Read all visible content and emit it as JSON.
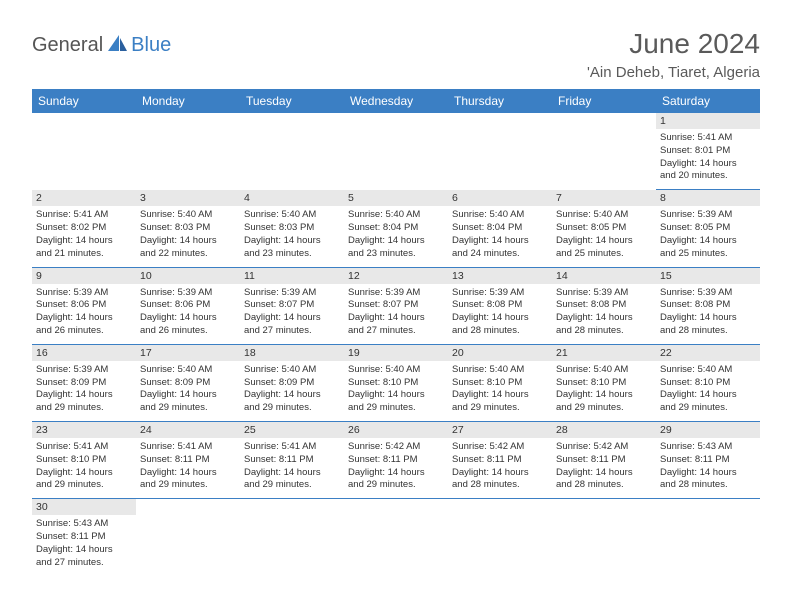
{
  "brand": {
    "part1": "General",
    "part2": "Blue"
  },
  "title": "June 2024",
  "location": "'Ain Deheb, Tiaret, Algeria",
  "colors": {
    "header_bg": "#3b7fc4",
    "header_text": "#ffffff",
    "daynum_bg": "#e8e8e8",
    "row_border": "#3b7fc4",
    "text": "#333333",
    "title_color": "#5a5a5a"
  },
  "day_headers": [
    "Sunday",
    "Monday",
    "Tuesday",
    "Wednesday",
    "Thursday",
    "Friday",
    "Saturday"
  ],
  "weeks": [
    {
      "nums": [
        "",
        "",
        "",
        "",
        "",
        "",
        "1"
      ],
      "cells": [
        null,
        null,
        null,
        null,
        null,
        null,
        {
          "sr": "Sunrise: 5:41 AM",
          "ss": "Sunset: 8:01 PM",
          "dl1": "Daylight: 14 hours",
          "dl2": "and 20 minutes."
        }
      ]
    },
    {
      "nums": [
        "2",
        "3",
        "4",
        "5",
        "6",
        "7",
        "8"
      ],
      "cells": [
        {
          "sr": "Sunrise: 5:41 AM",
          "ss": "Sunset: 8:02 PM",
          "dl1": "Daylight: 14 hours",
          "dl2": "and 21 minutes."
        },
        {
          "sr": "Sunrise: 5:40 AM",
          "ss": "Sunset: 8:03 PM",
          "dl1": "Daylight: 14 hours",
          "dl2": "and 22 minutes."
        },
        {
          "sr": "Sunrise: 5:40 AM",
          "ss": "Sunset: 8:03 PM",
          "dl1": "Daylight: 14 hours",
          "dl2": "and 23 minutes."
        },
        {
          "sr": "Sunrise: 5:40 AM",
          "ss": "Sunset: 8:04 PM",
          "dl1": "Daylight: 14 hours",
          "dl2": "and 23 minutes."
        },
        {
          "sr": "Sunrise: 5:40 AM",
          "ss": "Sunset: 8:04 PM",
          "dl1": "Daylight: 14 hours",
          "dl2": "and 24 minutes."
        },
        {
          "sr": "Sunrise: 5:40 AM",
          "ss": "Sunset: 8:05 PM",
          "dl1": "Daylight: 14 hours",
          "dl2": "and 25 minutes."
        },
        {
          "sr": "Sunrise: 5:39 AM",
          "ss": "Sunset: 8:05 PM",
          "dl1": "Daylight: 14 hours",
          "dl2": "and 25 minutes."
        }
      ]
    },
    {
      "nums": [
        "9",
        "10",
        "11",
        "12",
        "13",
        "14",
        "15"
      ],
      "cells": [
        {
          "sr": "Sunrise: 5:39 AM",
          "ss": "Sunset: 8:06 PM",
          "dl1": "Daylight: 14 hours",
          "dl2": "and 26 minutes."
        },
        {
          "sr": "Sunrise: 5:39 AM",
          "ss": "Sunset: 8:06 PM",
          "dl1": "Daylight: 14 hours",
          "dl2": "and 26 minutes."
        },
        {
          "sr": "Sunrise: 5:39 AM",
          "ss": "Sunset: 8:07 PM",
          "dl1": "Daylight: 14 hours",
          "dl2": "and 27 minutes."
        },
        {
          "sr": "Sunrise: 5:39 AM",
          "ss": "Sunset: 8:07 PM",
          "dl1": "Daylight: 14 hours",
          "dl2": "and 27 minutes."
        },
        {
          "sr": "Sunrise: 5:39 AM",
          "ss": "Sunset: 8:08 PM",
          "dl1": "Daylight: 14 hours",
          "dl2": "and 28 minutes."
        },
        {
          "sr": "Sunrise: 5:39 AM",
          "ss": "Sunset: 8:08 PM",
          "dl1": "Daylight: 14 hours",
          "dl2": "and 28 minutes."
        },
        {
          "sr": "Sunrise: 5:39 AM",
          "ss": "Sunset: 8:08 PM",
          "dl1": "Daylight: 14 hours",
          "dl2": "and 28 minutes."
        }
      ]
    },
    {
      "nums": [
        "16",
        "17",
        "18",
        "19",
        "20",
        "21",
        "22"
      ],
      "cells": [
        {
          "sr": "Sunrise: 5:39 AM",
          "ss": "Sunset: 8:09 PM",
          "dl1": "Daylight: 14 hours",
          "dl2": "and 29 minutes."
        },
        {
          "sr": "Sunrise: 5:40 AM",
          "ss": "Sunset: 8:09 PM",
          "dl1": "Daylight: 14 hours",
          "dl2": "and 29 minutes."
        },
        {
          "sr": "Sunrise: 5:40 AM",
          "ss": "Sunset: 8:09 PM",
          "dl1": "Daylight: 14 hours",
          "dl2": "and 29 minutes."
        },
        {
          "sr": "Sunrise: 5:40 AM",
          "ss": "Sunset: 8:10 PM",
          "dl1": "Daylight: 14 hours",
          "dl2": "and 29 minutes."
        },
        {
          "sr": "Sunrise: 5:40 AM",
          "ss": "Sunset: 8:10 PM",
          "dl1": "Daylight: 14 hours",
          "dl2": "and 29 minutes."
        },
        {
          "sr": "Sunrise: 5:40 AM",
          "ss": "Sunset: 8:10 PM",
          "dl1": "Daylight: 14 hours",
          "dl2": "and 29 minutes."
        },
        {
          "sr": "Sunrise: 5:40 AM",
          "ss": "Sunset: 8:10 PM",
          "dl1": "Daylight: 14 hours",
          "dl2": "and 29 minutes."
        }
      ]
    },
    {
      "nums": [
        "23",
        "24",
        "25",
        "26",
        "27",
        "28",
        "29"
      ],
      "cells": [
        {
          "sr": "Sunrise: 5:41 AM",
          "ss": "Sunset: 8:10 PM",
          "dl1": "Daylight: 14 hours",
          "dl2": "and 29 minutes."
        },
        {
          "sr": "Sunrise: 5:41 AM",
          "ss": "Sunset: 8:11 PM",
          "dl1": "Daylight: 14 hours",
          "dl2": "and 29 minutes."
        },
        {
          "sr": "Sunrise: 5:41 AM",
          "ss": "Sunset: 8:11 PM",
          "dl1": "Daylight: 14 hours",
          "dl2": "and 29 minutes."
        },
        {
          "sr": "Sunrise: 5:42 AM",
          "ss": "Sunset: 8:11 PM",
          "dl1": "Daylight: 14 hours",
          "dl2": "and 29 minutes."
        },
        {
          "sr": "Sunrise: 5:42 AM",
          "ss": "Sunset: 8:11 PM",
          "dl1": "Daylight: 14 hours",
          "dl2": "and 28 minutes."
        },
        {
          "sr": "Sunrise: 5:42 AM",
          "ss": "Sunset: 8:11 PM",
          "dl1": "Daylight: 14 hours",
          "dl2": "and 28 minutes."
        },
        {
          "sr": "Sunrise: 5:43 AM",
          "ss": "Sunset: 8:11 PM",
          "dl1": "Daylight: 14 hours",
          "dl2": "and 28 minutes."
        }
      ]
    },
    {
      "nums": [
        "30",
        "",
        "",
        "",
        "",
        "",
        ""
      ],
      "cells": [
        {
          "sr": "Sunrise: 5:43 AM",
          "ss": "Sunset: 8:11 PM",
          "dl1": "Daylight: 14 hours",
          "dl2": "and 27 minutes."
        },
        null,
        null,
        null,
        null,
        null,
        null
      ]
    }
  ]
}
